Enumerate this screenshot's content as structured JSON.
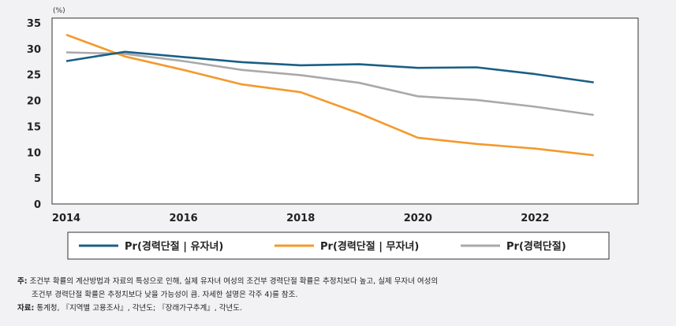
{
  "chart_data": {
    "type": "line",
    "unit": "(%)",
    "x": [
      2014,
      2015,
      2016,
      2017,
      2018,
      2019,
      2020,
      2021,
      2022,
      2023
    ],
    "xticks": [
      "2014",
      "2016",
      "2018",
      "2020",
      "2022"
    ],
    "xtick_values": [
      2014,
      2016,
      2018,
      2020,
      2022
    ],
    "yticks": [
      "0",
      "5",
      "10",
      "15",
      "20",
      "25",
      "30",
      "35"
    ],
    "ylim": [
      0,
      35
    ],
    "xlim": [
      2014,
      2024
    ],
    "grid": false,
    "legend_placement": "bottom",
    "series": [
      {
        "name": "Pr(경력단절 | 유자녀)",
        "color": "#1b5f85",
        "values": [
          27.6,
          29.4,
          28.4,
          27.4,
          26.8,
          27.0,
          26.3,
          26.4,
          25.1,
          23.5
        ]
      },
      {
        "name": "Pr(경력단절 | 무자녀)",
        "color": "#f39a2c",
        "values": [
          32.7,
          28.5,
          25.9,
          23.1,
          21.6,
          17.5,
          12.8,
          11.6,
          10.7,
          9.4
        ]
      },
      {
        "name": "Pr(경력단절)",
        "color": "#a9a9ab",
        "values": [
          29.3,
          29.0,
          27.6,
          25.9,
          24.9,
          23.4,
          20.8,
          20.1,
          18.8,
          17.2
        ]
      }
    ]
  },
  "notes": {
    "note_label": "주:",
    "note_line1": "조건부 확률의 계산방법과 자료의 특성으로 인해, 실제 유자녀 여성의 조건부 경력단절 확률은 추정치보다 높고, 실제 무자녀 여성의",
    "note_line2": "조건부 경력단절 확률은 추정치보다 낮을 가능성이 큼. 자세한 설명은 각주 4)를 참조.",
    "source_label": "자료:",
    "source_text": "통계청, 『지역별 고용조사』, 각년도; 『장래가구추계』, 각년도."
  }
}
